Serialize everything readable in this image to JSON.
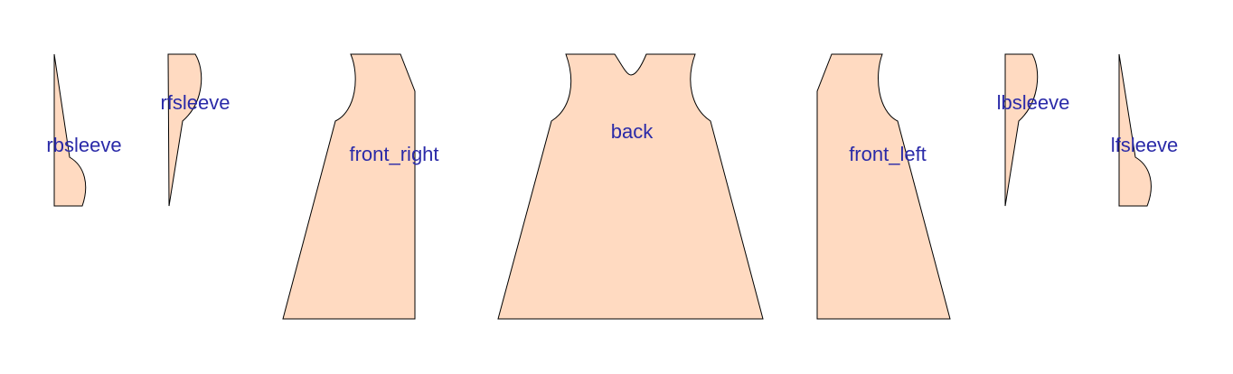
{
  "diagram": {
    "background_color": "#ffffff",
    "fill_color": "#ffdac1",
    "stroke_color": "#000000",
    "label_color": "#2a2aa8",
    "pieces": [
      {
        "id": "rbsleeve",
        "label": "rbsleeve"
      },
      {
        "id": "rfsleeve",
        "label": "rfsleeve"
      },
      {
        "id": "front_right",
        "label": "front_right"
      },
      {
        "id": "back",
        "label": "back"
      },
      {
        "id": "front_left",
        "label": "front_left"
      },
      {
        "id": "lbsleeve",
        "label": "lbsleeve"
      },
      {
        "id": "lfsleeve",
        "label": "lfsleeve"
      }
    ]
  }
}
